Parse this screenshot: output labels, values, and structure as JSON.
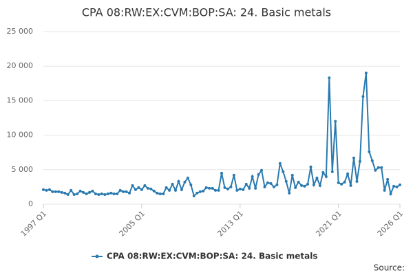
{
  "chart_data": {
    "type": "line",
    "title": "CPA 08:RW:EX:CVM:BOP:SA: 24. Basic metals",
    "source": "Source:",
    "categories": [
      "1997 Q1",
      null,
      null,
      null,
      null,
      null,
      null,
      null,
      null,
      null,
      null,
      null,
      null,
      null,
      null,
      null,
      null,
      null,
      null,
      null,
      null,
      null,
      null,
      null,
      null,
      null,
      null,
      null,
      null,
      null,
      null,
      null,
      "2005 Q1",
      null,
      null,
      null,
      null,
      null,
      null,
      null,
      null,
      null,
      null,
      null,
      null,
      null,
      null,
      null,
      null,
      null,
      null,
      null,
      null,
      null,
      null,
      null,
      null,
      null,
      null,
      null,
      null,
      null,
      null,
      null,
      "2013 Q1",
      null,
      null,
      null,
      null,
      null,
      null,
      null,
      null,
      null,
      null,
      null,
      null,
      null,
      null,
      null,
      null,
      null,
      null,
      null,
      null,
      null,
      null,
      null,
      null,
      null,
      null,
      null,
      null,
      null,
      null,
      null,
      "2021 Q1",
      null,
      null,
      null,
      null,
      null,
      null,
      null,
      null,
      null,
      null,
      null,
      null,
      null,
      null,
      null,
      null,
      null,
      null,
      null,
      "2026 Q1"
    ],
    "series": [
      {
        "name": "CPA 08:RW:EX:CVM:BOP:SA: 24. Basic metals",
        "color": "#2a7ab0",
        "values": [
          2100,
          2000,
          2100,
          1800,
          1800,
          1800,
          1700,
          1600,
          1400,
          2000,
          1400,
          1500,
          1900,
          1700,
          1500,
          1700,
          1900,
          1500,
          1400,
          1500,
          1400,
          1500,
          1600,
          1500,
          1500,
          2000,
          1800,
          1800,
          1600,
          2700,
          2100,
          2400,
          2100,
          2700,
          2300,
          2200,
          1900,
          1600,
          1500,
          1500,
          2400,
          2000,
          2900,
          2000,
          3300,
          2100,
          3200,
          3800,
          2800,
          1200,
          1600,
          1800,
          1900,
          2400,
          2300,
          2300,
          2000,
          2000,
          4500,
          2400,
          2200,
          2500,
          4200,
          2000,
          2200,
          2100,
          2900,
          2300,
          4000,
          2300,
          4300,
          4900,
          2500,
          3100,
          3000,
          2500,
          2800,
          5900,
          4700,
          3300,
          1600,
          4200,
          2400,
          3200,
          2700,
          2600,
          2900,
          5400,
          2800,
          3800,
          2700,
          4600,
          4000,
          18300,
          4700,
          12000,
          3100,
          2900,
          3200,
          4400,
          2700,
          6700,
          3300,
          6200,
          15600,
          19000,
          7600,
          6300,
          4900,
          5300,
          5300,
          2000,
          3600,
          1500,
          2600,
          2500,
          2800
        ]
      }
    ],
    "ylim": [
      0,
      25000
    ],
    "yticks": [
      0,
      {
        "value": 5000,
        "label": "5 000"
      },
      {
        "value": 10000,
        "label": "10 000"
      },
      {
        "value": 15000,
        "label": "15 000"
      },
      {
        "value": 20000,
        "label": "20 000"
      },
      {
        "value": 25000,
        "label": "25 000"
      }
    ],
    "grid": true
  }
}
